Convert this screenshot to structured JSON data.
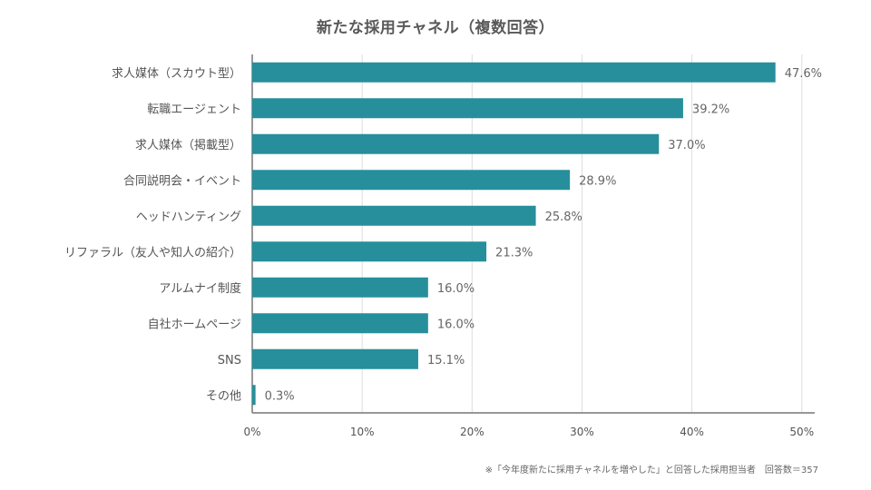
{
  "chart_data": {
    "type": "bar",
    "orientation": "horizontal",
    "title": "新たな採用チャネル（複数回答）",
    "categories": [
      "求人媒体（スカウト型）",
      "転職エージェント",
      "求人媒体（掲載型）",
      "合同説明会・イベント",
      "ヘッドハンティング",
      "リファラル（友人や知人の紹介）",
      "アルムナイ制度",
      "自社ホームページ",
      "SNS",
      "その他"
    ],
    "values": [
      47.6,
      39.2,
      37.0,
      28.9,
      25.8,
      21.3,
      16.0,
      16.0,
      15.1,
      0.3
    ],
    "value_labels": [
      "47.6%",
      "39.2%",
      "37.0%",
      "28.9%",
      "25.8%",
      "21.3%",
      "16.0%",
      "16.0%",
      "15.1%",
      "0.3%"
    ],
    "xlim": [
      0,
      52
    ],
    "x_ticks": [
      0,
      10,
      20,
      30,
      40,
      50
    ],
    "x_tick_labels": [
      "0%",
      "10%",
      "20%",
      "30%",
      "40%",
      "50%"
    ],
    "xlabel": "",
    "ylabel": "",
    "grid": "vertical",
    "legend": "none",
    "bar_color": "#268f9b",
    "grid_color": "#dddddd",
    "axis_color": "#777777"
  },
  "footnote": "※「今年度新たに採用チャネルを増やした」と回答した採用担当者　回答数＝357"
}
